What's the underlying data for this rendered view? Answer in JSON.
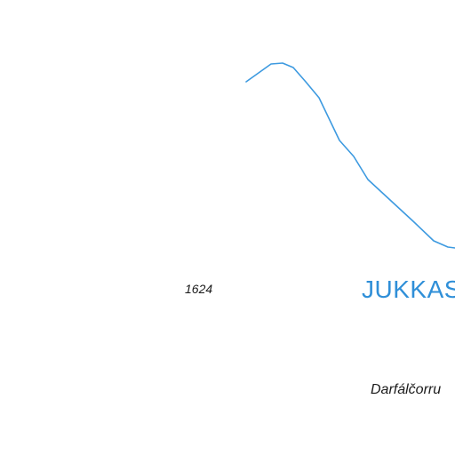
{
  "map": {
    "spot_height": "1624",
    "place_name": "Darfálčorru",
    "region_name": "JUKKAS",
    "colors": {
      "background": "#ffffff",
      "water": "#3d9ae0",
      "water_label": "#2f8fd8",
      "text": "#1a1a1a"
    },
    "features": [
      {
        "type": "stream",
        "name": "",
        "description": "blue line feature"
      }
    ]
  }
}
